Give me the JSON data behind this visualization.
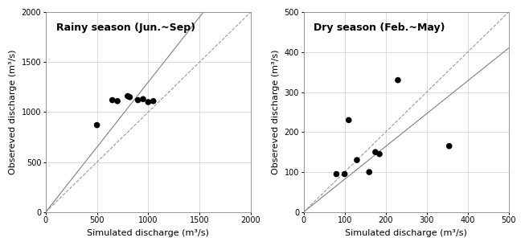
{
  "rainy": {
    "title": "Rainy season (Jun.~Sep)",
    "simulated": [
      500,
      650,
      700,
      800,
      820,
      900,
      950,
      1000,
      1050
    ],
    "observed": [
      870,
      1120,
      1110,
      1160,
      1150,
      1120,
      1130,
      1100,
      1110
    ],
    "xlim": [
      0,
      2000
    ],
    "ylim": [
      0,
      2000
    ],
    "xticks": [
      0,
      500,
      1000,
      1500,
      2000
    ],
    "yticks": [
      0,
      500,
      1000,
      1500,
      2000
    ],
    "xlabel": "Simulated discharge (m³/s)",
    "ylabel": "Obsereved discharge (m³/s)",
    "solid_slope": 1.3,
    "dashed_slope": 1.0
  },
  "dry": {
    "title": "Dry season (Feb.~May)",
    "simulated": [
      80,
      100,
      110,
      130,
      160,
      175,
      185,
      230,
      355
    ],
    "observed": [
      95,
      95,
      230,
      130,
      100,
      150,
      145,
      330,
      165
    ],
    "xlim": [
      0,
      500
    ],
    "ylim": [
      0,
      500
    ],
    "xticks": [
      0,
      100,
      200,
      300,
      400,
      500
    ],
    "yticks": [
      0,
      100,
      200,
      300,
      400,
      500
    ],
    "xlabel": "Simulated discharge (m³/s)",
    "ylabel": "Obsereved discharge (m³/s)",
    "solid_slope": 0.82,
    "dashed_slope": 1.0
  },
  "dot_color": "#000000",
  "dot_size": 30,
  "solid_color": "#808080",
  "dashed_color": "#999999",
  "title_fontsize": 9,
  "label_fontsize": 8,
  "tick_fontsize": 7,
  "bg_color": "#ffffff",
  "fig_bg_color": "#ffffff"
}
